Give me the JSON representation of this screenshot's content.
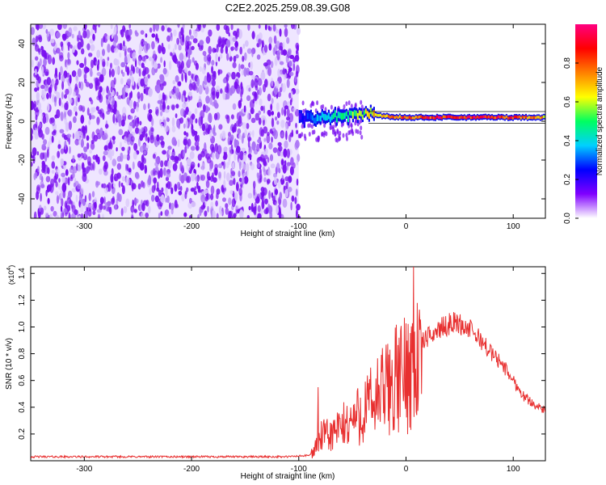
{
  "title": "C2E2.2025.259.08.39.G08",
  "chart_data": [
    {
      "type": "heatmap",
      "xlabel": "Height of straight line (km)",
      "ylabel": "Frequency (Hz)",
      "xlim": [
        -350,
        130
      ],
      "ylim": [
        -50,
        50
      ],
      "x_ticks": [
        -300,
        -200,
        -100,
        0,
        100
      ],
      "y_ticks": [
        -40,
        -20,
        0,
        20,
        40
      ],
      "colorbar": {
        "label": "Normalized spectral amplitude",
        "range": [
          0,
          1
        ],
        "ticks": [
          "0.0",
          "0.2",
          "0.4",
          "0.6",
          "0.8"
        ],
        "tick_values": [
          0,
          0.2,
          0.4,
          0.6,
          0.8
        ],
        "colors": [
          "#ffffff",
          "#8000ff",
          "#0000ff",
          "#00d0ff",
          "#00ff60",
          "#ffff00",
          "#ff8000",
          "#ff0000",
          "#ff0080"
        ]
      },
      "noise_region": {
        "x": [
          -350,
          -100
        ],
        "y": [
          -50,
          50
        ],
        "level": 0.15
      },
      "signal_track": [
        {
          "x": -100,
          "freq": 1.0,
          "amp": 0.2
        },
        {
          "x": -85,
          "freq": 2.0,
          "amp": 0.35
        },
        {
          "x": -70,
          "freq": 2.5,
          "amp": 0.45
        },
        {
          "x": -50,
          "freq": 3.0,
          "amp": 0.55
        },
        {
          "x": -35,
          "freq": 4.0,
          "amp": 0.65
        },
        {
          "x": -20,
          "freq": 2.5,
          "amp": 0.75
        },
        {
          "x": 0,
          "freq": 2.0,
          "amp": 0.85
        },
        {
          "x": 20,
          "freq": 2.0,
          "amp": 0.9
        },
        {
          "x": 50,
          "freq": 2.0,
          "amp": 0.95
        },
        {
          "x": 80,
          "freq": 2.0,
          "amp": 0.9
        },
        {
          "x": 100,
          "freq": 2.0,
          "amp": 0.85
        },
        {
          "x": 130,
          "freq": 2.0,
          "amp": 0.7
        }
      ]
    },
    {
      "type": "line",
      "xlabel": "Height of straight line (km)",
      "ylabel": "SNR (10 * v/v)",
      "y_scale_label": "(x10",
      "y_scale_exp": "4",
      "y_scale_close": ")",
      "xlim": [
        -350,
        130
      ],
      "ylim": [
        0,
        1.45
      ],
      "x_ticks": [
        -300,
        -200,
        -100,
        0,
        100
      ],
      "y_ticks": [
        "0.2",
        "0.4",
        "0.6",
        "0.8",
        "1.0",
        "1.2",
        "1.4"
      ],
      "y_tick_values": [
        0.2,
        0.4,
        0.6,
        0.8,
        1.0,
        1.2,
        1.4
      ],
      "color": "#e83030",
      "series": [
        {
          "x": [
            -350,
            -300,
            -250,
            -200,
            -150,
            -110,
            -90,
            -85,
            -80,
            -70,
            -60,
            -50,
            -40,
            -30,
            -20,
            -10,
            0,
            5,
            10,
            20,
            30,
            40,
            45,
            50,
            60,
            70,
            80,
            90,
            100,
            110,
            120,
            130
          ],
          "values": [
            0.03,
            0.03,
            0.03,
            0.03,
            0.03,
            0.03,
            0.04,
            0.1,
            0.2,
            0.22,
            0.28,
            0.35,
            0.42,
            0.5,
            0.6,
            0.68,
            0.75,
            0.85,
            0.85,
            0.92,
            0.98,
            1.02,
            1.04,
            1.02,
            0.98,
            0.9,
            0.8,
            0.72,
            0.6,
            0.48,
            0.42,
            0.37
          ]
        }
      ]
    }
  ]
}
